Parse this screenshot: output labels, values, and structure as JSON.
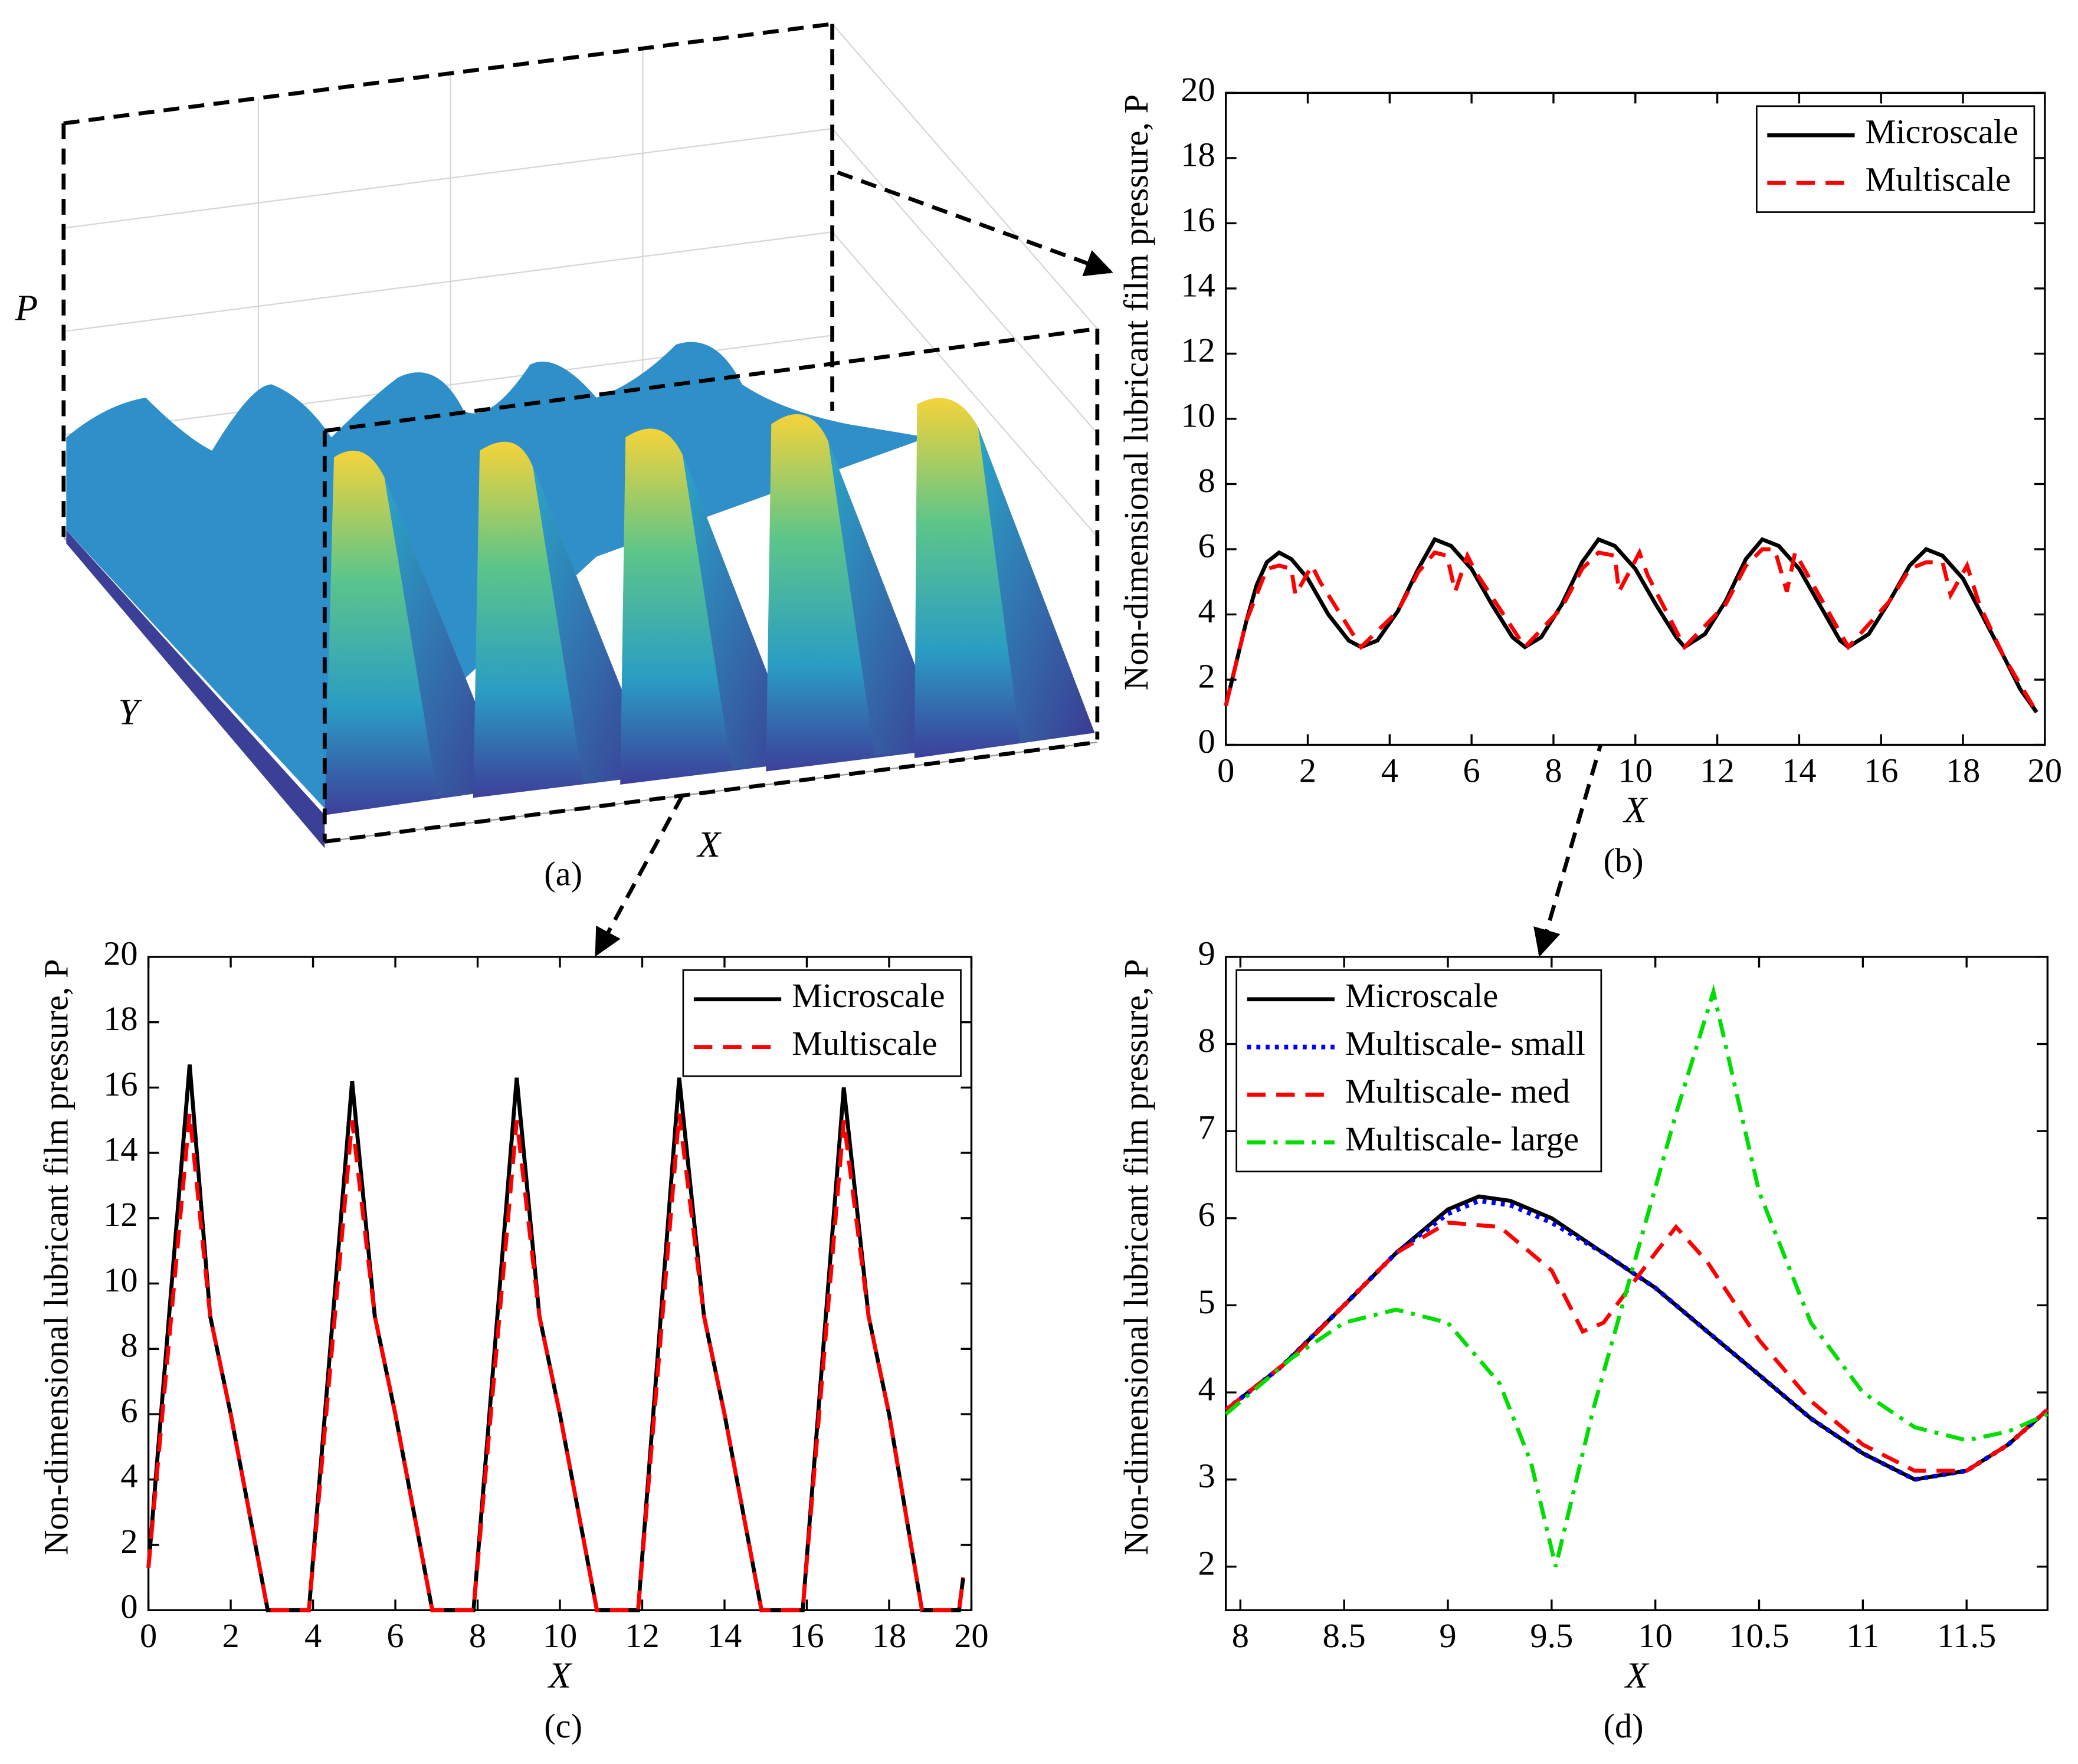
{
  "chart_data": [
    {
      "type": "surface",
      "zlabel": "P",
      "ylabel": "Y",
      "xlabel": "X",
      "caption": "(a)"
    },
    {
      "type": "line",
      "xlabel": "X",
      "ylabel": "Non-dimensional lubricant film pressure, P",
      "caption": "(b)",
      "xlim": [
        0,
        20
      ],
      "ylim": [
        0,
        20
      ],
      "xticks": [
        0,
        2,
        4,
        6,
        8,
        10,
        12,
        14,
        16,
        18,
        20
      ],
      "yticks": [
        0,
        2,
        4,
        6,
        8,
        10,
        12,
        14,
        16,
        18,
        20
      ],
      "legend": "upper right",
      "series": [
        {
          "name": "Microscale",
          "color": "#000000",
          "style": "solid",
          "x": [
            0,
            0.25,
            0.5,
            0.75,
            1,
            1.3,
            1.6,
            2,
            2.5,
            3,
            3.3,
            3.7,
            4.2,
            4.7,
            5.1,
            5.5,
            6,
            6.5,
            7,
            7.3,
            7.7,
            8.2,
            8.7,
            9.1,
            9.5,
            10,
            10.5,
            11,
            11.2,
            11.7,
            12.2,
            12.7,
            13.1,
            13.5,
            14,
            14.5,
            15,
            15.2,
            15.7,
            16.2,
            16.7,
            17.1,
            17.5,
            18,
            18.5,
            19,
            19.4,
            19.8
          ],
          "values": [
            1.2,
            2.5,
            3.8,
            4.9,
            5.6,
            5.9,
            5.7,
            5.1,
            4.0,
            3.2,
            3.0,
            3.2,
            4.1,
            5.4,
            6.3,
            6.1,
            5.4,
            4.3,
            3.3,
            3.0,
            3.3,
            4.3,
            5.6,
            6.3,
            6.1,
            5.4,
            4.3,
            3.3,
            3.0,
            3.4,
            4.4,
            5.7,
            6.3,
            6.1,
            5.4,
            4.3,
            3.2,
            3.0,
            3.4,
            4.4,
            5.5,
            6.0,
            5.8,
            5.1,
            3.9,
            2.7,
            1.7,
            1.0
          ]
        },
        {
          "name": "Multiscale",
          "color": "#ff0000",
          "style": "dashed",
          "x": [
            0,
            0.5,
            1,
            1.3,
            1.6,
            1.7,
            2.1,
            2.3,
            3.3,
            4.2,
            4.7,
            5.1,
            5.4,
            5.6,
            5.9,
            6.1,
            7.3,
            8.2,
            8.7,
            9.1,
            9.5,
            9.6,
            10.1,
            10.3,
            11.2,
            12.2,
            12.7,
            13.1,
            13.4,
            13.7,
            13.9,
            14.3,
            15.2,
            16.2,
            16.7,
            17.1,
            17.5,
            17.7,
            18.1,
            18.4,
            19,
            19.8
          ],
          "values": [
            1.2,
            3.8,
            5.4,
            5.5,
            5.4,
            4.6,
            5.5,
            5.0,
            3.0,
            4.1,
            5.3,
            5.9,
            5.8,
            4.7,
            5.8,
            5.3,
            3.0,
            4.2,
            5.4,
            5.9,
            5.8,
            4.7,
            5.9,
            5.2,
            3.0,
            4.3,
            5.5,
            6.0,
            6.0,
            4.7,
            5.9,
            5.0,
            3.0,
            4.4,
            5.4,
            5.6,
            5.6,
            4.6,
            5.5,
            4.3,
            2.7,
            1.0
          ]
        }
      ]
    },
    {
      "type": "line",
      "xlabel": "X",
      "ylabel": "Non-dimensional lubricant film pressure, P",
      "caption": "(c)",
      "xlim": [
        0,
        20
      ],
      "ylim": [
        0,
        20
      ],
      "xticks": [
        0,
        2,
        4,
        6,
        8,
        10,
        12,
        14,
        16,
        18,
        20
      ],
      "yticks": [
        0,
        2,
        4,
        6,
        8,
        10,
        12,
        14,
        16,
        18,
        20
      ],
      "legend": "upper right",
      "series": [
        {
          "name": "Microscale",
          "color": "#000000",
          "style": "solid",
          "x": [
            0,
            1,
            1.5,
            2,
            2.9,
            3.9,
            4.95,
            5.5,
            6,
            6.9,
            7.9,
            8.95,
            9.5,
            10,
            10.9,
            11.9,
            12.9,
            13.5,
            14,
            14.9,
            15.9,
            16.9,
            17.5,
            18,
            18.8,
            19.7,
            19.8
          ],
          "values": [
            1.3,
            16.7,
            9,
            6,
            0,
            0,
            16.2,
            9,
            6,
            0,
            0,
            16.3,
            9,
            6,
            0,
            0,
            16.3,
            9,
            6,
            0,
            0,
            16,
            9,
            6,
            0,
            0,
            1
          ]
        },
        {
          "name": "Multiscale",
          "color": "#ff0000",
          "style": "dashed",
          "x": [
            0,
            1,
            1.5,
            2,
            2.9,
            3.9,
            4.95,
            5.5,
            6,
            6.9,
            7.9,
            8.95,
            9.5,
            10,
            10.9,
            11.9,
            12.9,
            13.5,
            14,
            14.9,
            15.9,
            16.9,
            17.5,
            18,
            18.8,
            19.7,
            19.8
          ],
          "values": [
            1.3,
            15.2,
            9,
            6,
            0,
            0,
            15,
            9,
            6,
            0,
            0,
            15,
            9,
            6,
            0,
            0,
            15.2,
            9,
            6,
            0,
            0,
            15,
            9,
            6,
            0,
            0,
            1
          ]
        }
      ]
    },
    {
      "type": "line",
      "xlabel": "X",
      "ylabel": "Non-dimensional lubricant film pressure, P",
      "caption": "(d)",
      "xlim": [
        7.93,
        11.89
      ],
      "ylim": [
        1.5,
        9
      ],
      "xticks": [
        8,
        8.5,
        9,
        9.5,
        10,
        10.5,
        11,
        11.5
      ],
      "yticks": [
        2,
        3,
        4,
        5,
        6,
        7,
        8,
        9
      ],
      "legend": "upper left",
      "series": [
        {
          "name": "Microscale",
          "color": "#000000",
          "style": "solid",
          "x": [
            7.93,
            8.2,
            8.5,
            8.75,
            9,
            9.15,
            9.3,
            9.5,
            9.75,
            10,
            10.25,
            10.5,
            10.75,
            11,
            11.25,
            11.5,
            11.7,
            11.89
          ],
          "values": [
            3.8,
            4.3,
            5.0,
            5.6,
            6.1,
            6.25,
            6.2,
            6.0,
            5.6,
            5.2,
            4.7,
            4.2,
            3.7,
            3.3,
            3.0,
            3.1,
            3.4,
            3.8
          ]
        },
        {
          "name": "Multiscale- small",
          "color": "#0000ff",
          "style": "dotted",
          "x": [
            7.93,
            8.2,
            8.5,
            8.75,
            9,
            9.15,
            9.3,
            9.5,
            9.75,
            10,
            10.25,
            10.5,
            10.75,
            11,
            11.25,
            11.5,
            11.7,
            11.89
          ],
          "values": [
            3.8,
            4.3,
            5.0,
            5.6,
            6.05,
            6.2,
            6.15,
            5.95,
            5.6,
            5.2,
            4.7,
            4.2,
            3.7,
            3.3,
            3.0,
            3.1,
            3.4,
            3.8
          ]
        },
        {
          "name": "Multiscale- med",
          "color": "#ff0000",
          "style": "dashed",
          "x": [
            7.93,
            8.25,
            8.5,
            8.75,
            9,
            9.25,
            9.5,
            9.65,
            9.75,
            10,
            10.1,
            10.25,
            10.5,
            10.75,
            11,
            11.25,
            11.5,
            11.7,
            11.89
          ],
          "values": [
            3.8,
            4.4,
            5.0,
            5.6,
            5.95,
            5.9,
            5.4,
            4.7,
            4.8,
            5.6,
            5.9,
            5.5,
            4.6,
            3.9,
            3.4,
            3.1,
            3.1,
            3.4,
            3.8
          ]
        },
        {
          "name": "Multiscale- large",
          "color": "#00dd00",
          "style": "dashdot",
          "x": [
            7.93,
            8.25,
            8.5,
            8.75,
            9,
            9.25,
            9.4,
            9.52,
            9.7,
            9.9,
            10.1,
            10.28,
            10.5,
            10.75,
            11,
            11.25,
            11.5,
            11.7,
            11.89
          ],
          "values": [
            3.75,
            4.4,
            4.8,
            4.95,
            4.8,
            4.1,
            3.2,
            2.0,
            3.8,
            5.5,
            7.2,
            8.6,
            6.3,
            4.8,
            4.0,
            3.6,
            3.45,
            3.55,
            3.75
          ]
        }
      ]
    }
  ]
}
